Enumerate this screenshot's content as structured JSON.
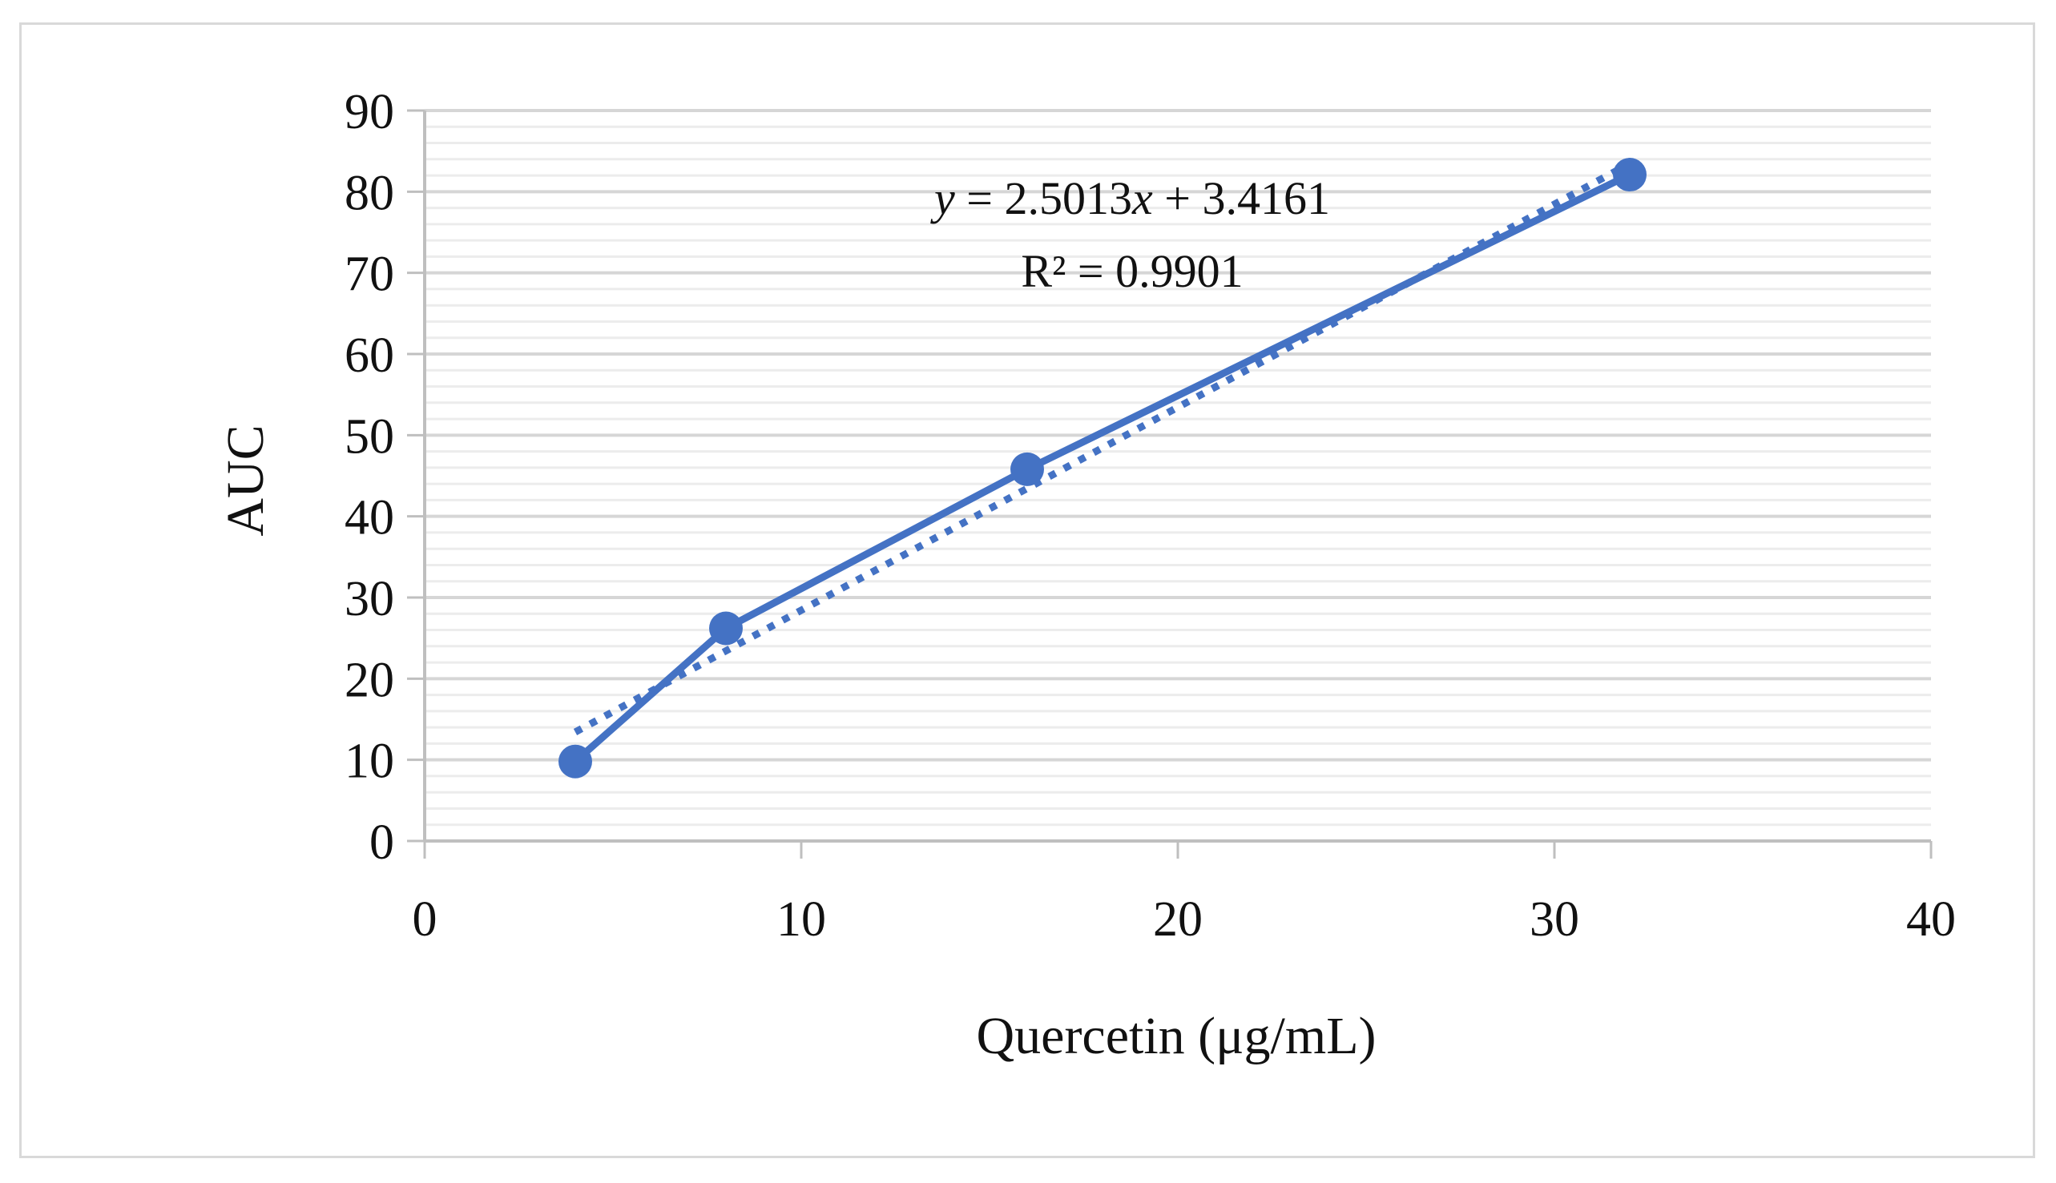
{
  "chart_data": {
    "type": "scatter",
    "xlabel": "Quercetin (μg/mL)",
    "ylabel": "AUC",
    "xlim": [
      0,
      40
    ],
    "ylim": [
      0,
      90
    ],
    "x_ticks": [
      "0",
      "10",
      "20",
      "30",
      "40"
    ],
    "y_ticks": [
      "0",
      "10",
      "20",
      "30",
      "40",
      "50",
      "60",
      "70",
      "80",
      "90"
    ],
    "series": [
      {
        "x": [
          4,
          8,
          16,
          32
        ],
        "y": [
          9.8,
          26.2,
          45.8,
          82.1
        ],
        "color": "#4472c4",
        "line": "solid",
        "markers": true
      }
    ],
    "trendline": {
      "kind": "linear",
      "slope": 2.5013,
      "intercept": 3.4161,
      "x_range": [
        4,
        32
      ],
      "style": "dotted",
      "color": "#4472c4"
    },
    "annotation": {
      "equation_prefix": "y",
      "equation_mid": " = 2.5013",
      "equation_var": "x",
      "equation_suffix": " + 3.4161",
      "r_squared": "R² = 0.9901"
    },
    "grid": {
      "major": true,
      "minor": true
    },
    "legend": "none"
  }
}
